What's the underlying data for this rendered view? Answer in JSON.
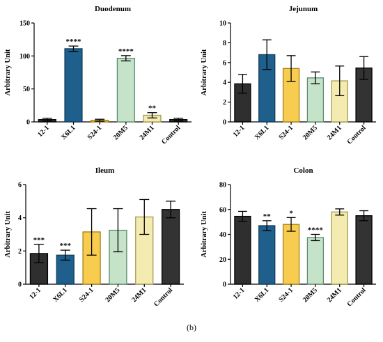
{
  "caption": "(b)",
  "colors": {
    "12-1": "#2f2f2f",
    "X6L1": "#1f5f8b",
    "S24-1": "#f7cc4f",
    "20M5": "#c5e3c9",
    "24M1": "#f4ebb0",
    "Control": "#333333"
  },
  "strokes": {
    "12-1": "#000000",
    "X6L1": "#0f3d5c",
    "S24-1": "#a38115",
    "20M5": "#5d8a6b",
    "24M1": "#a39a4d",
    "Control": "#000000"
  },
  "chart_data": [
    {
      "type": "bar",
      "title": "Duodenum",
      "ylabel": "Arbitrary Unit",
      "ylim": [
        0,
        150
      ],
      "yticks": [
        0,
        50,
        100,
        150
      ],
      "categories": [
        "12-1",
        "X6L1",
        "S24-1",
        "20M5",
        "24M1",
        "Control"
      ],
      "values": [
        3.5,
        111,
        2.5,
        96.5,
        10,
        3.5
      ],
      "errors": [
        2,
        4,
        1.5,
        4,
        4,
        2
      ],
      "significance": [
        "",
        "****",
        "",
        "****",
        "**",
        ""
      ]
    },
    {
      "type": "bar",
      "title": "Jejunum",
      "ylabel": "Arbitrary Unit",
      "ylim": [
        0,
        10
      ],
      "yticks": [
        0,
        2,
        4,
        6,
        8,
        10
      ],
      "categories": [
        "12-1",
        "X6L1",
        "S24-1",
        "20M5",
        "24M1",
        "Control"
      ],
      "values": [
        3.85,
        6.8,
        5.4,
        4.45,
        4.15,
        5.45
      ],
      "errors": [
        0.95,
        1.5,
        1.3,
        0.6,
        1.5,
        1.15
      ],
      "significance": [
        "",
        "",
        "",
        "",
        "",
        ""
      ]
    },
    {
      "type": "bar",
      "title": "Ileum",
      "ylabel": "Arbitrary Unit",
      "ylim": [
        0,
        6
      ],
      "yticks": [
        0,
        2,
        4,
        6
      ],
      "categories": [
        "12-1",
        "X6L1",
        "S24-1",
        "20M5",
        "24M1",
        "Control"
      ],
      "values": [
        1.85,
        1.75,
        3.15,
        3.25,
        4.05,
        4.5
      ],
      "errors": [
        0.55,
        0.3,
        1.4,
        1.3,
        1.05,
        0.5
      ],
      "significance": [
        "***",
        "***",
        "",
        "",
        "",
        ""
      ]
    },
    {
      "type": "bar",
      "title": "Colon",
      "ylabel": "Arbitrary Unit",
      "ylim": [
        0,
        80
      ],
      "yticks": [
        0,
        20,
        40,
        60,
        80
      ],
      "categories": [
        "12-1",
        "X6L1",
        "S24-1",
        "20M5",
        "24M1",
        "Control"
      ],
      "values": [
        54.5,
        47,
        48,
        37.5,
        58,
        55
      ],
      "errors": [
        4,
        4,
        5.5,
        2.5,
        2.5,
        4
      ],
      "significance": [
        "",
        "**",
        "*",
        "****",
        "",
        ""
      ]
    }
  ]
}
